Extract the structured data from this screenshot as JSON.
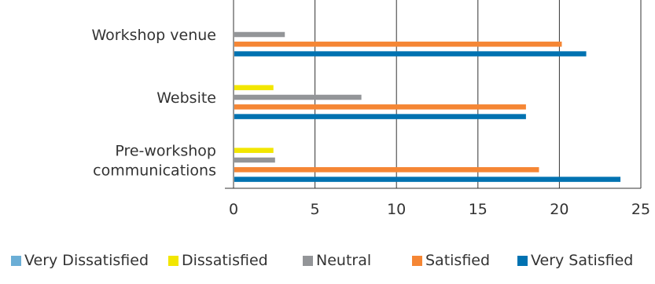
{
  "chart_data": {
    "type": "bar",
    "orientation": "horizontal",
    "categories": [
      "Pre-workshop communications",
      "Website",
      "Workshop venue"
    ],
    "category_lines": [
      [
        "Pre-workshop",
        "communications"
      ],
      [
        "Website"
      ],
      [
        "Workshop venue"
      ]
    ],
    "series": [
      {
        "name": "Very Dissatisfied",
        "color": "#6baed6",
        "values": [
          0,
          0,
          0
        ]
      },
      {
        "name": "Dissatisfied",
        "color": "#f2e600",
        "values": [
          2.4,
          2.4,
          0
        ]
      },
      {
        "name": "Neutral",
        "color": "#939598",
        "values": [
          2.5,
          7.8,
          3.1
        ]
      },
      {
        "name": "Satisfied",
        "color": "#f58634",
        "values": [
          18.7,
          17.9,
          20.1
        ]
      },
      {
        "name": "Very Satisfied",
        "color": "#0072b1",
        "values": [
          23.7,
          17.9,
          21.6
        ]
      }
    ],
    "xlim": [
      0,
      25
    ],
    "xticks": [
      "0",
      "5",
      "10",
      "15",
      "20",
      "25"
    ],
    "grid": "vertical",
    "legend_position": "bottom"
  }
}
